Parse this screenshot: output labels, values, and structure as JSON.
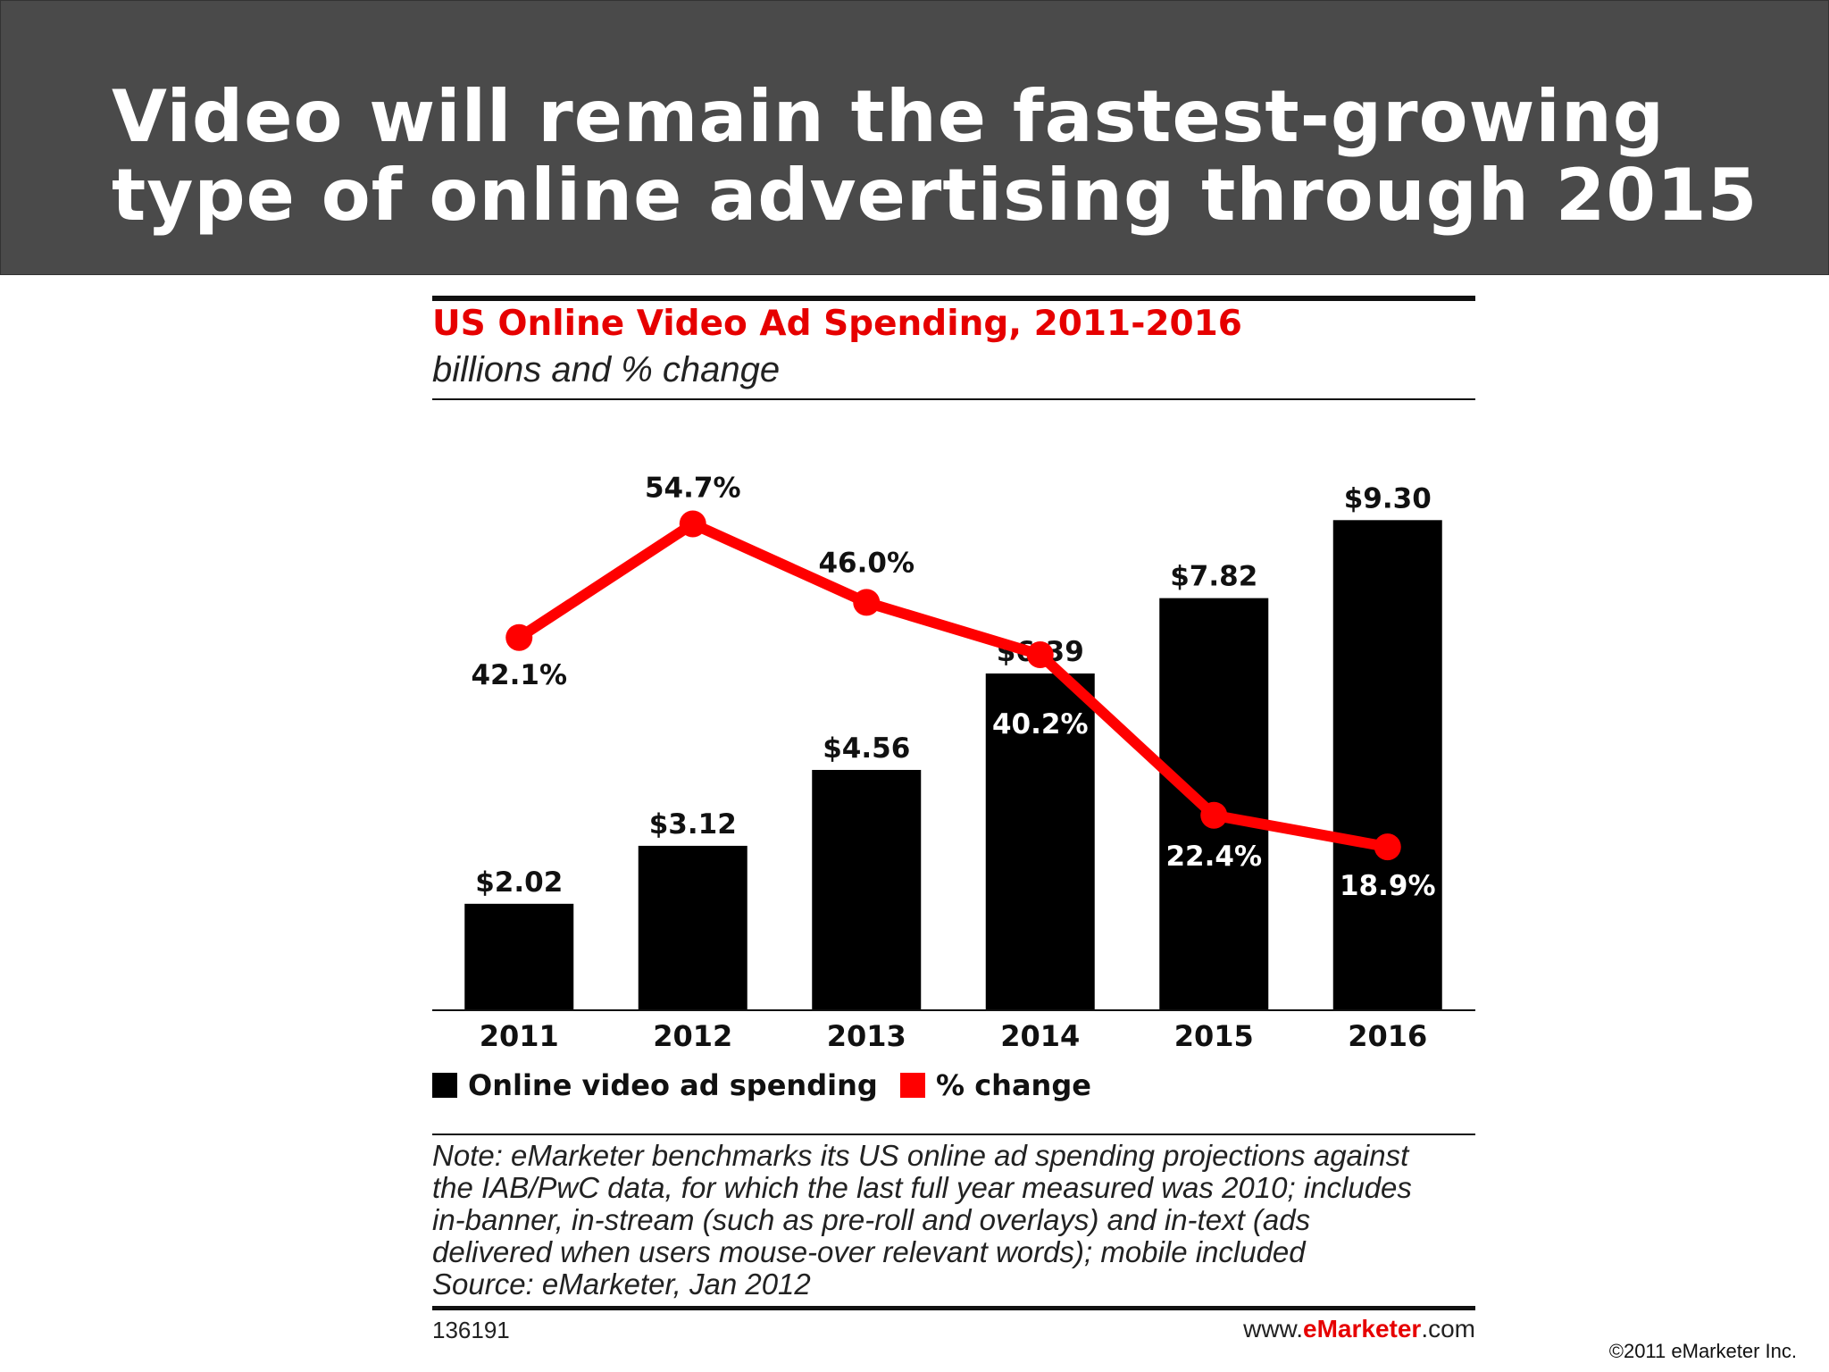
{
  "slide": {
    "title_line1": "Video will remain the fastest-growing",
    "title_line2": "type of online advertising through 2015",
    "copyright": "©2011 eMarketer Inc."
  },
  "chart_data": {
    "type": "bar",
    "title": "US Online Video Ad Spending, 2011-2016",
    "subtitle": "billions and % change",
    "categories": [
      "2011",
      "2012",
      "2013",
      "2014",
      "2015",
      "2016"
    ],
    "series": [
      {
        "name": "Online video ad spending",
        "type": "bar",
        "color": "#000000",
        "values": [
          2.02,
          3.12,
          4.56,
          6.39,
          7.82,
          9.3
        ],
        "labels": [
          "$2.02",
          "$3.12",
          "$4.56",
          "$6.39",
          "$7.82",
          "$9.30"
        ]
      },
      {
        "name": "% change",
        "type": "line",
        "color": "#ff0000",
        "values": [
          42.1,
          54.7,
          46.0,
          40.2,
          22.4,
          18.9
        ],
        "labels": [
          "42.1%",
          "54.7%",
          "46.0%",
          "40.2%",
          "22.4%",
          "18.9%"
        ]
      }
    ],
    "grid": false,
    "legend_position": "bottom-left"
  },
  "note": {
    "lines": [
      "Note: eMarketer benchmarks its US online ad spending projections against",
      "the IAB/PwC data, for which the last full year measured was 2010; includes",
      "in-banner, in-stream (such as pre-roll and overlays) and in-text (ads",
      "delivered when users mouse-over relevant words); mobile included",
      "Source: eMarketer, Jan 2012"
    ]
  },
  "footer": {
    "chart_id": "136191",
    "site_prefix": "www.",
    "site_brand": "eMarketer",
    "site_suffix": ".com"
  }
}
